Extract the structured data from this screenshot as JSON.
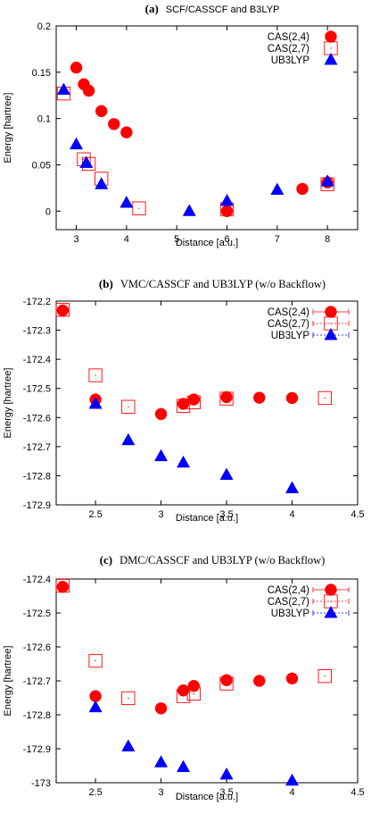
{
  "chart_data": [
    {
      "type": "scatter",
      "letter": "(a)",
      "title": "SCF/CASSCF and B3LYP",
      "xlabel": "Distance [a.u.]",
      "ylabel": "Energy [hartree]",
      "xlim": [
        2.6,
        8.6
      ],
      "ylim": [
        -0.02,
        0.2
      ],
      "xticks": [
        3,
        4,
        5,
        6,
        7,
        8
      ],
      "yticks": [
        0,
        0.05,
        0.1,
        0.15,
        0.2
      ],
      "xtick_labels": [
        "3",
        "4",
        "5",
        "6",
        "7",
        "8"
      ],
      "ytick_labels": [
        "0",
        "0.05",
        "0.1",
        "0.15",
        "0.2"
      ],
      "legend_position": "top-right",
      "series": [
        {
          "name": "CAS(2,4)",
          "marker": "filled-circle",
          "color": "#ff0000",
          "x": [
            3.0,
            3.15,
            3.25,
            3.5,
            3.75,
            4.0,
            6.0,
            7.5,
            8.0
          ],
          "y": [
            0.155,
            0.137,
            0.13,
            0.108,
            0.094,
            0.085,
            0.0,
            0.024,
            0.031
          ]
        },
        {
          "name": "CAS(2,7)",
          "marker": "open-square",
          "color": "#ff0000",
          "x": [
            2.75,
            3.15,
            3.25,
            3.5,
            4.25,
            6.0,
            8.0
          ],
          "y": [
            0.127,
            0.056,
            0.051,
            0.035,
            0.003,
            0.002,
            0.029
          ]
        },
        {
          "name": "UB3LYP",
          "marker": "filled-triangle",
          "color": "#0000ff",
          "x": [
            2.75,
            3.0,
            3.2,
            3.5,
            4.0,
            5.25,
            6.0,
            7.0,
            8.0
          ],
          "y": [
            0.131,
            0.072,
            0.052,
            0.029,
            0.009,
            0.0,
            0.011,
            0.023,
            0.032
          ]
        }
      ]
    },
    {
      "type": "scatter",
      "letter": "(b)",
      "title": "VMC/CASSCF and UB3LYP (w/o Backflow)",
      "xlabel": "Distance [a.u.]",
      "ylabel": "Energy [hartree]",
      "xlim": [
        2.2,
        4.5
      ],
      "ylim": [
        -172.9,
        -172.2
      ],
      "xticks": [
        2.5,
        3,
        3.5,
        4,
        4.5
      ],
      "yticks": [
        -172.9,
        -172.8,
        -172.7,
        -172.6,
        -172.5,
        -172.4,
        -172.3,
        -172.2
      ],
      "xtick_labels": [
        "2.5",
        "3",
        "3.5",
        "4",
        "4.5"
      ],
      "ytick_labels": [
        "-172.9",
        "-172.8",
        "-172.7",
        "-172.6",
        "-172.5",
        "-172.4",
        "-172.3",
        "-172.2"
      ],
      "legend_position": "top-right",
      "series": [
        {
          "name": "CAS(2,4)",
          "marker": "filled-circle",
          "color": "#ff0000",
          "x": [
            2.25,
            2.5,
            3.0,
            3.17,
            3.25,
            3.5,
            3.75,
            4.0
          ],
          "y": [
            -172.232,
            -172.538,
            -172.588,
            -172.553,
            -172.538,
            -172.53,
            -172.532,
            -172.533
          ]
        },
        {
          "name": "CAS(2,7)",
          "marker": "open-square",
          "color": "#ff0000",
          "x": [
            2.25,
            2.5,
            2.75,
            3.17,
            3.25,
            3.5,
            4.25
          ],
          "y": [
            -172.23,
            -172.455,
            -172.563,
            -172.56,
            -172.548,
            -172.535,
            -172.533
          ]
        },
        {
          "name": "UB3LYP",
          "marker": "filled-triangle",
          "color": "#0000ff",
          "x": [
            2.5,
            2.75,
            3.0,
            3.17,
            3.5,
            4.0
          ],
          "y": [
            -172.553,
            -172.678,
            -172.733,
            -172.755,
            -172.797,
            -172.843
          ]
        }
      ]
    },
    {
      "type": "scatter",
      "letter": "(c)",
      "title": "DMC/CASSCF and UB3LYP (w/o Backflow)",
      "xlabel": "Distance [a.u.]",
      "ylabel": "Energy [hartree]",
      "xlim": [
        2.2,
        4.5
      ],
      "ylim": [
        -173.0,
        -172.4
      ],
      "xticks": [
        2.5,
        3,
        3.5,
        4,
        4.5
      ],
      "yticks": [
        -173.0,
        -172.9,
        -172.8,
        -172.7,
        -172.6,
        -172.5,
        -172.4
      ],
      "xtick_labels": [
        "2.5",
        "3",
        "3.5",
        "4",
        "4.5"
      ],
      "ytick_labels": [
        "-173",
        "-172.9",
        "-172.8",
        "-172.7",
        "-172.6",
        "-172.5",
        "-172.4"
      ],
      "legend_position": "top-right",
      "series": [
        {
          "name": "CAS(2,4)",
          "marker": "filled-circle",
          "color": "#ff0000",
          "x": [
            2.25,
            2.5,
            3.0,
            3.17,
            3.25,
            3.5,
            3.75,
            4.0
          ],
          "y": [
            -172.423,
            -172.745,
            -172.781,
            -172.728,
            -172.715,
            -172.698,
            -172.7,
            -172.693
          ]
        },
        {
          "name": "CAS(2,7)",
          "marker": "open-square",
          "color": "#ff0000",
          "x": [
            2.25,
            2.5,
            2.75,
            3.17,
            3.25,
            3.5,
            4.25
          ],
          "y": [
            -172.42,
            -172.641,
            -172.751,
            -172.745,
            -172.738,
            -172.708,
            -172.686
          ]
        },
        {
          "name": "UB3LYP",
          "marker": "filled-triangle",
          "color": "#0000ff",
          "x": [
            2.5,
            2.75,
            3.0,
            3.17,
            3.5,
            4.0
          ],
          "y": [
            -172.778,
            -172.893,
            -172.94,
            -172.954,
            -172.976,
            -172.994
          ]
        }
      ]
    }
  ]
}
